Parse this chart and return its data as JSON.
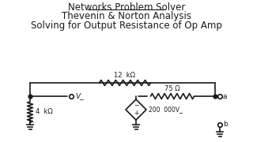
{
  "title_line1": "Networks Problem Solver",
  "title_line2": "Thevenin & Norton Analysis",
  "title_line3": "Solving for Output Resistance of Op Amp",
  "bg_color": "#ffffff",
  "line_color": "#1a1a1a",
  "label_12k": "12  kΩ",
  "label_75": "75 Ω",
  "label_4k": "4  kΩ",
  "label_200k": "200  000V_",
  "label_Vm": "V_",
  "label_a": "a",
  "label_b": "b"
}
